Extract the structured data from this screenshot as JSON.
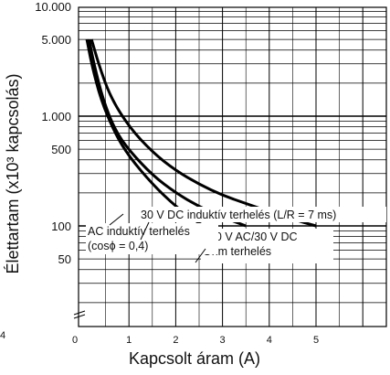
{
  "chart_data": {
    "type": "line",
    "xlabel": "Kapcsolt áram (A)",
    "ylabel": "Élettartam (x10³ kapcsolás)",
    "xlim": [
      0,
      6
    ],
    "ylim": [
      0,
      10000
    ],
    "y_scale": "log",
    "y_ticks": [
      {
        "value": 10000,
        "label": "10.000"
      },
      {
        "value": 5000,
        "label": "5.000"
      },
      {
        "value": 1000,
        "label": "1.000"
      },
      {
        "value": 500,
        "label": "500"
      },
      {
        "value": 100,
        "label": "100"
      },
      {
        "value": 50,
        "label": "50"
      }
    ],
    "x_ticks": [
      {
        "value": 0,
        "label": "0"
      },
      {
        "value": 1,
        "label": "1"
      },
      {
        "value": 2,
        "label": "2"
      },
      {
        "value": 3,
        "label": "3"
      },
      {
        "value": 4,
        "label": "4"
      },
      {
        "value": 5,
        "label": "5"
      }
    ],
    "left_edge_label": "4",
    "grid": true,
    "series": [
      {
        "name": "30 V DC induktív terhelés (L/R = 7 ms)",
        "points": [
          [
            0.1,
            5000
          ],
          [
            0.2,
            3000
          ],
          [
            0.4,
            1400
          ],
          [
            0.7,
            700
          ],
          [
            1.0,
            430
          ],
          [
            1.5,
            240
          ],
          [
            2.0,
            150
          ],
          [
            2.5,
            105
          ],
          [
            3.0,
            80
          ]
        ]
      },
      {
        "name": "250 V AC/30 V DC Ohm terhelés",
        "points": [
          [
            0.2,
            5000
          ],
          [
            0.35,
            3000
          ],
          [
            0.6,
            1500
          ],
          [
            1.0,
            800
          ],
          [
            1.5,
            470
          ],
          [
            2.0,
            320
          ],
          [
            2.5,
            240
          ],
          [
            3.0,
            190
          ],
          [
            3.5,
            160
          ],
          [
            4.0,
            135
          ],
          [
            4.5,
            115
          ],
          [
            5.0,
            100
          ]
        ]
      },
      {
        "name": "AC induktív terhelés (cosϕ = 0,4)",
        "points": [
          [
            0.15,
            5000
          ],
          [
            0.25,
            3000
          ],
          [
            0.45,
            1400
          ],
          [
            0.7,
            750
          ],
          [
            1.0,
            490
          ],
          [
            1.5,
            290
          ],
          [
            2.0,
            200
          ],
          [
            2.5,
            150
          ],
          [
            3.0,
            120
          ],
          [
            3.5,
            100
          ]
        ]
      }
    ],
    "annotations": [
      {
        "text": "30 V DC induktív terhelés (L/R = 7 ms)",
        "series_index": 0
      },
      {
        "text": "250 V AC/30 V DC",
        "series_index": 1
      },
      {
        "text": "Ohm terhelés",
        "series_index": 1
      },
      {
        "text": "AC induktív terhelés",
        "series_index": 2
      },
      {
        "text": "(cosϕ = 0,4)",
        "series_index": 2
      }
    ],
    "colors": {
      "line": "#000000",
      "grid": "#000000",
      "background": "#ffffff"
    }
  }
}
